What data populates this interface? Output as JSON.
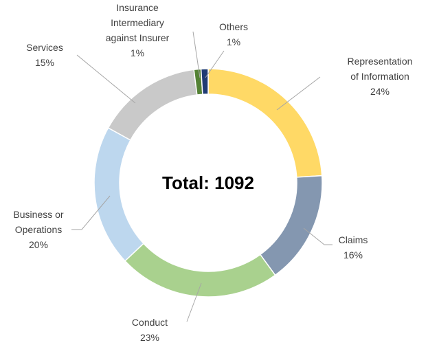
{
  "chart_data": {
    "type": "donut",
    "annotation": "Total: 1092",
    "categories": [
      "Representation of Information",
      "Claims",
      "Conduct",
      "Business or Operations",
      "Services",
      "Insurance Intermediary against Insurer",
      "Others"
    ],
    "values": [
      24,
      16,
      23,
      20,
      15,
      1,
      1
    ],
    "value_labels": [
      "24%",
      "16%",
      "23%",
      "20%",
      "15%",
      "1%",
      "1%"
    ],
    "colors": [
      "#ffd966",
      "#8497b0",
      "#a9d18e",
      "#bdd7ee",
      "#c9c9c9",
      "#548235",
      "#1f3b73"
    ]
  }
}
